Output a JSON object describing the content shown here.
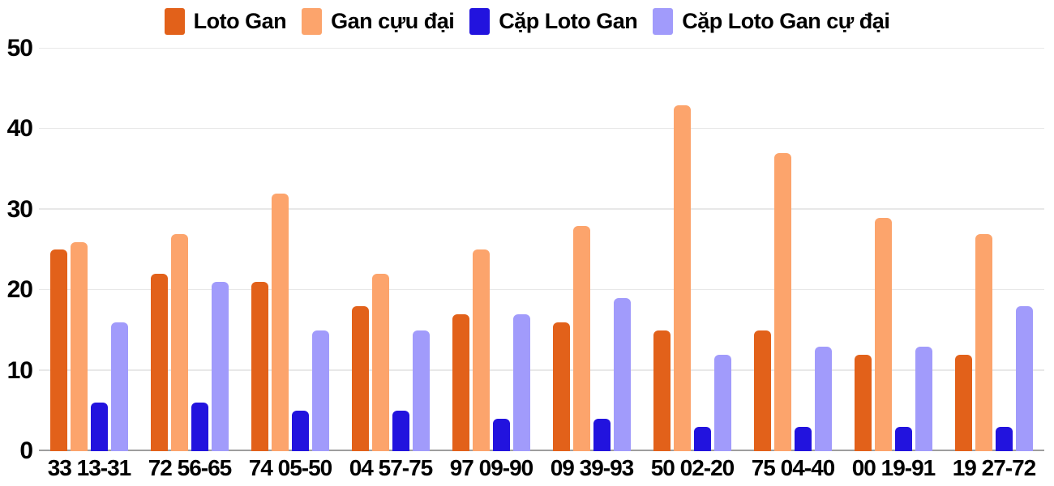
{
  "chart_data": {
    "type": "bar",
    "title": "",
    "categories": [
      "33 13-31",
      "72 56-65",
      "74 05-50",
      "04 57-75",
      "97 09-90",
      "09 39-93",
      "50 02-20",
      "75 04-40",
      "00 19-91",
      "19 27-72"
    ],
    "series": [
      {
        "name": "Loto Gan",
        "color": "#e2611a",
        "values": [
          25,
          22,
          21,
          18,
          17,
          16,
          15,
          15,
          12,
          12
        ]
      },
      {
        "name": "Gan cựu đại",
        "color": "#fca46c",
        "values": [
          26,
          27,
          32,
          22,
          25,
          28,
          43,
          37,
          29,
          27
        ]
      },
      {
        "name": "Cặp Loto Gan",
        "color": "#2213de",
        "values": [
          6,
          6,
          5,
          5,
          4,
          4,
          3,
          3,
          3,
          3
        ]
      },
      {
        "name": "Cặp Loto Gan cự đại",
        "color": "#a19bfb",
        "values": [
          16,
          21,
          15,
          15,
          17,
          19,
          12,
          13,
          13,
          18
        ]
      }
    ],
    "xlabel": "",
    "ylabel": "",
    "ylim": [
      0,
      50
    ],
    "yticks": [
      0,
      10,
      20,
      30,
      40,
      50
    ],
    "grid": true,
    "legend_position": "top"
  },
  "colors": {
    "grid": "#e8e8e8",
    "baseline": "#9e9e9e",
    "text": "#000000",
    "background": "#ffffff"
  }
}
